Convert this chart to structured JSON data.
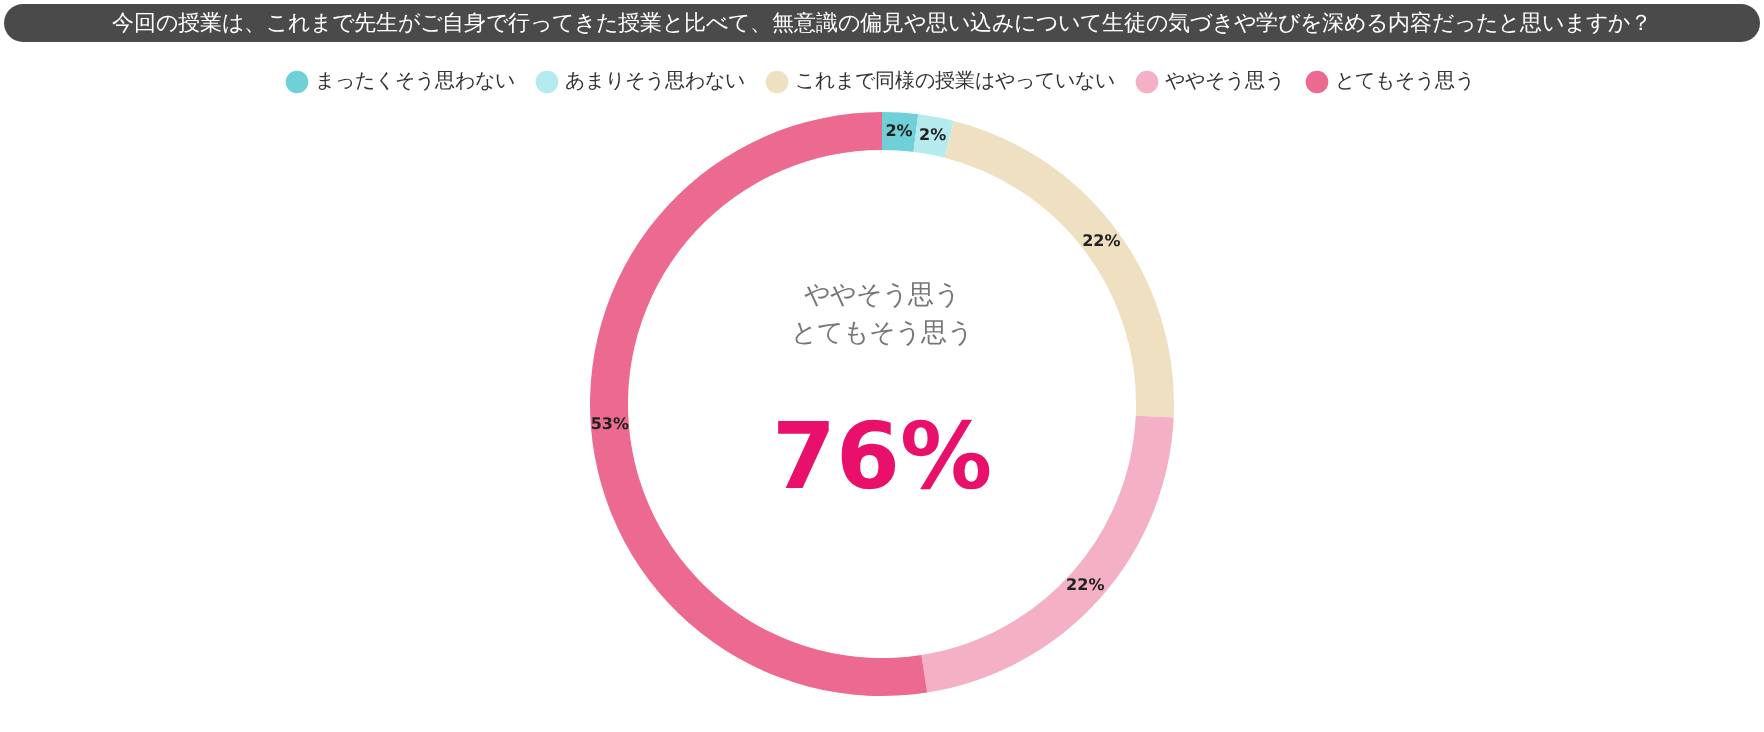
{
  "chart_data": {
    "type": "donut",
    "title": "今回の授業は、これまで先生がご自身で行ってきた授業と比べて、無意識の偏見や思い込みについて生徒の気づきや学びを深める内容だったと思いますか？",
    "categories": [
      "まったくそう思わない",
      "あまりそう思わない",
      "これまで同様の授業はやっていない",
      "ややそう思う",
      "とてもそう思う"
    ],
    "values": [
      2,
      2,
      22,
      22,
      53
    ],
    "colors": [
      "#6fd0d8",
      "#b5eaee",
      "#efe0c2",
      "#f4b0c4",
      "#ec6990"
    ],
    "value_labels": [
      "2%",
      "2%",
      "22%",
      "22%",
      "53%"
    ],
    "annotations": [
      "ややそう思う",
      "とてもそう思う",
      "76%"
    ],
    "legend": "top"
  }
}
